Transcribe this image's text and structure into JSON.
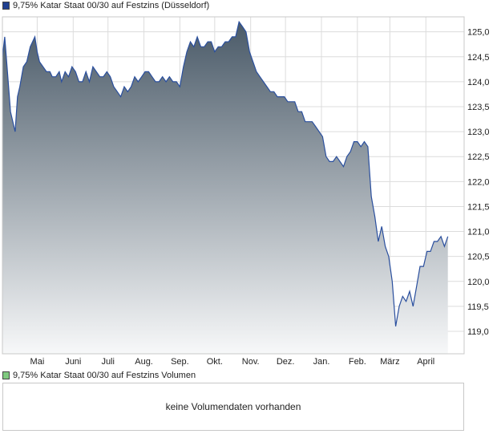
{
  "chart_data": {
    "type": "area",
    "title": "9,75% Katar Staat 00/30 auf Festzins (Düsseldorf)",
    "series_color": "#2a4f9e",
    "area_gradient_top": "#4a5a68",
    "area_gradient_bottom": "#f7f8f9",
    "xlabel": "",
    "ylabel": "",
    "ylim": [
      118.55,
      125.3
    ],
    "y_ticks": [
      119.0,
      119.5,
      120.0,
      120.5,
      121.0,
      121.5,
      122.0,
      122.5,
      123.0,
      123.5,
      124.0,
      124.5,
      125.0
    ],
    "y_tick_labels": [
      "119,0",
      "119,5",
      "120,0",
      "120,5",
      "121,0",
      "121,5",
      "122,0",
      "122,5",
      "123,0",
      "123,5",
      "124,0",
      "124,5",
      "125,0"
    ],
    "x_range_days": [
      0,
      398
    ],
    "x_ticks": [
      {
        "label": "Mai",
        "day": 30
      },
      {
        "label": "Juni",
        "day": 61
      },
      {
        "label": "Juli",
        "day": 91
      },
      {
        "label": "Aug.",
        "day": 122
      },
      {
        "label": "Sep.",
        "day": 153
      },
      {
        "label": "Okt.",
        "day": 183
      },
      {
        "label": "Nov.",
        "day": 214
      },
      {
        "label": "Dez.",
        "day": 244
      },
      {
        "label": "Jan.",
        "day": 275
      },
      {
        "label": "Feb.",
        "day": 306
      },
      {
        "label": "März",
        "day": 334
      },
      {
        "label": "April",
        "day": 365
      }
    ],
    "grid": true,
    "legend": "top-left",
    "points": [
      [
        0,
        124.5
      ],
      [
        2,
        124.9
      ],
      [
        4,
        124.3
      ],
      [
        7,
        123.4
      ],
      [
        9,
        123.2
      ],
      [
        11,
        123.0
      ],
      [
        13,
        123.7
      ],
      [
        15,
        123.9
      ],
      [
        18,
        124.3
      ],
      [
        21,
        124.4
      ],
      [
        24,
        124.7
      ],
      [
        26,
        124.8
      ],
      [
        28,
        124.9
      ],
      [
        30,
        124.6
      ],
      [
        32,
        124.4
      ],
      [
        35,
        124.3
      ],
      [
        38,
        124.2
      ],
      [
        41,
        124.2
      ],
      [
        43,
        124.1
      ],
      [
        46,
        124.1
      ],
      [
        49,
        124.2
      ],
      [
        51,
        124.0
      ],
      [
        54,
        124.2
      ],
      [
        57,
        124.1
      ],
      [
        60,
        124.3
      ],
      [
        63,
        124.2
      ],
      [
        66,
        124.0
      ],
      [
        69,
        124.0
      ],
      [
        72,
        124.2
      ],
      [
        75,
        124.0
      ],
      [
        78,
        124.3
      ],
      [
        81,
        124.2
      ],
      [
        84,
        124.1
      ],
      [
        87,
        124.1
      ],
      [
        90,
        124.2
      ],
      [
        93,
        124.1
      ],
      [
        96,
        123.9
      ],
      [
        99,
        123.8
      ],
      [
        102,
        123.7
      ],
      [
        105,
        123.9
      ],
      [
        108,
        123.8
      ],
      [
        111,
        123.9
      ],
      [
        114,
        124.1
      ],
      [
        117,
        124.0
      ],
      [
        120,
        124.1
      ],
      [
        123,
        124.2
      ],
      [
        126,
        124.2
      ],
      [
        129,
        124.1
      ],
      [
        132,
        124.0
      ],
      [
        135,
        124.0
      ],
      [
        138,
        124.1
      ],
      [
        141,
        124.0
      ],
      [
        144,
        124.1
      ],
      [
        147,
        124.0
      ],
      [
        150,
        124.0
      ],
      [
        153,
        123.9
      ],
      [
        156,
        124.3
      ],
      [
        159,
        124.6
      ],
      [
        162,
        124.8
      ],
      [
        165,
        124.7
      ],
      [
        168,
        124.9
      ],
      [
        171,
        124.7
      ],
      [
        174,
        124.7
      ],
      [
        177,
        124.8
      ],
      [
        180,
        124.8
      ],
      [
        183,
        124.6
      ],
      [
        186,
        124.7
      ],
      [
        189,
        124.7
      ],
      [
        192,
        124.8
      ],
      [
        195,
        124.8
      ],
      [
        198,
        124.9
      ],
      [
        201,
        124.9
      ],
      [
        204,
        125.2
      ],
      [
        207,
        125.1
      ],
      [
        210,
        125.0
      ],
      [
        213,
        124.6
      ],
      [
        216,
        124.4
      ],
      [
        219,
        124.2
      ],
      [
        222,
        124.1
      ],
      [
        225,
        124.0
      ],
      [
        228,
        123.9
      ],
      [
        231,
        123.8
      ],
      [
        234,
        123.8
      ],
      [
        237,
        123.7
      ],
      [
        240,
        123.7
      ],
      [
        243,
        123.7
      ],
      [
        246,
        123.6
      ],
      [
        249,
        123.6
      ],
      [
        252,
        123.6
      ],
      [
        255,
        123.4
      ],
      [
        258,
        123.4
      ],
      [
        261,
        123.2
      ],
      [
        264,
        123.2
      ],
      [
        267,
        123.2
      ],
      [
        270,
        123.1
      ],
      [
        273,
        123.0
      ],
      [
        276,
        122.9
      ],
      [
        279,
        122.5
      ],
      [
        282,
        122.4
      ],
      [
        285,
        122.4
      ],
      [
        288,
        122.5
      ],
      [
        291,
        122.4
      ],
      [
        294,
        122.3
      ],
      [
        297,
        122.5
      ],
      [
        300,
        122.6
      ],
      [
        303,
        122.8
      ],
      [
        306,
        122.8
      ],
      [
        309,
        122.7
      ],
      [
        312,
        122.8
      ],
      [
        315,
        122.7
      ],
      [
        318,
        121.7
      ],
      [
        321,
        121.3
      ],
      [
        324,
        120.8
      ],
      [
        327,
        121.1
      ],
      [
        330,
        120.7
      ],
      [
        333,
        120.5
      ],
      [
        336,
        120.0
      ],
      [
        339,
        119.1
      ],
      [
        342,
        119.5
      ],
      [
        345,
        119.7
      ],
      [
        348,
        119.6
      ],
      [
        351,
        119.8
      ],
      [
        354,
        119.5
      ],
      [
        357,
        119.9
      ],
      [
        360,
        120.3
      ],
      [
        363,
        120.3
      ],
      [
        366,
        120.6
      ],
      [
        369,
        120.6
      ],
      [
        372,
        120.8
      ],
      [
        375,
        120.8
      ],
      [
        378,
        120.9
      ],
      [
        381,
        120.7
      ],
      [
        384,
        120.9
      ]
    ]
  },
  "legend_price": {
    "label": "9,75% Katar Staat 00/30 auf Festzins (Düsseldorf)",
    "color": "#1f3f8f"
  },
  "legend_volume": {
    "label": "9,75% Katar Staat 00/30 auf Festzins Volumen",
    "color": "#7fc97f"
  },
  "volume_message": "keine Volumendaten vorhanden"
}
